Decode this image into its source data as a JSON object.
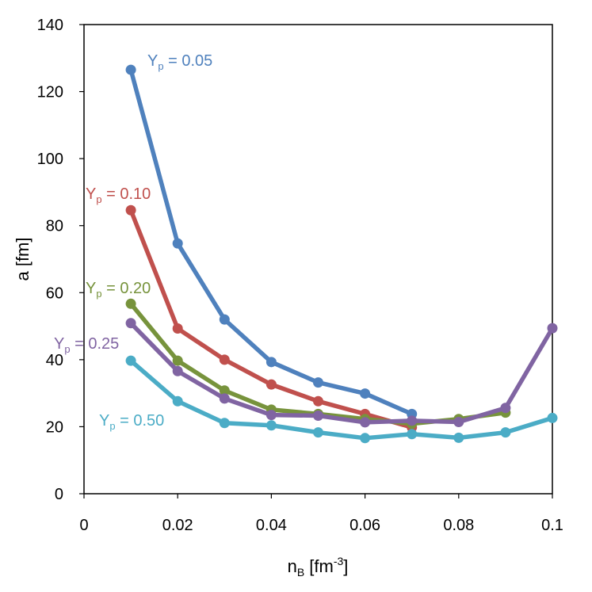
{
  "chart_data": {
    "type": "line",
    "xlabel": "n",
    "xlabel_sub": "B",
    "xlabel_tail": " [fm",
    "xlabel_sup": "-3",
    "xlabel_end": "]",
    "ylabel": "a [fm]",
    "xlim": [
      0,
      0.1
    ],
    "ylim": [
      0,
      140
    ],
    "x_ticks": [
      "0",
      "0.02",
      "0.04",
      "0.06",
      "0.08",
      "0.1"
    ],
    "y_ticks": [
      "0",
      "20",
      "40",
      "60",
      "80",
      "100",
      "120",
      "140"
    ],
    "grid": false,
    "series": [
      {
        "name": "Yp = 0.05",
        "label_main": "Y",
        "label_sub": "p",
        "label_tail": " = 0.05",
        "color": "#4f81bd",
        "x": [
          0.01,
          0.02,
          0.03,
          0.04,
          0.05,
          0.06,
          0.07
        ],
        "y": [
          126.5,
          74.7,
          52.0,
          39.3,
          33.2,
          29.9,
          23.8
        ]
      },
      {
        "name": "Yp = 0.10",
        "label_main": "Y",
        "label_sub": "p",
        "label_tail": " = 0.10",
        "color": "#c0504d",
        "x": [
          0.01,
          0.02,
          0.03,
          0.04,
          0.05,
          0.06,
          0.07
        ],
        "y": [
          84.6,
          49.3,
          40.0,
          32.6,
          27.6,
          23.8,
          19.8
        ]
      },
      {
        "name": "Yp = 0.20",
        "label_main": "Y",
        "label_sub": "p",
        "label_tail": " = 0.20",
        "color": "#77933c",
        "x": [
          0.01,
          0.02,
          0.03,
          0.04,
          0.05,
          0.06,
          0.07,
          0.08,
          0.09
        ],
        "y": [
          56.7,
          39.7,
          30.8,
          25.1,
          23.8,
          22.3,
          20.9,
          22.3,
          24.2
        ]
      },
      {
        "name": "Yp = 0.25",
        "label_main": "Y",
        "label_sub": "p",
        "label_tail": " = 0.25",
        "color": "#8064a2",
        "x": [
          0.01,
          0.02,
          0.03,
          0.04,
          0.05,
          0.06,
          0.07,
          0.08,
          0.09,
          0.1
        ],
        "y": [
          50.9,
          36.6,
          28.4,
          23.5,
          23.3,
          21.3,
          21.8,
          21.4,
          25.6,
          49.4
        ]
      },
      {
        "name": "Yp = 0.50",
        "label_main": "Y",
        "label_sub": "p",
        "label_tail": " = 0.50",
        "color": "#4bacc6",
        "x": [
          0.01,
          0.02,
          0.03,
          0.04,
          0.05,
          0.06,
          0.07,
          0.08,
          0.09,
          0.1
        ],
        "y": [
          39.7,
          27.6,
          21.1,
          20.4,
          18.3,
          16.6,
          17.8,
          16.7,
          18.3,
          22.6
        ]
      }
    ]
  }
}
